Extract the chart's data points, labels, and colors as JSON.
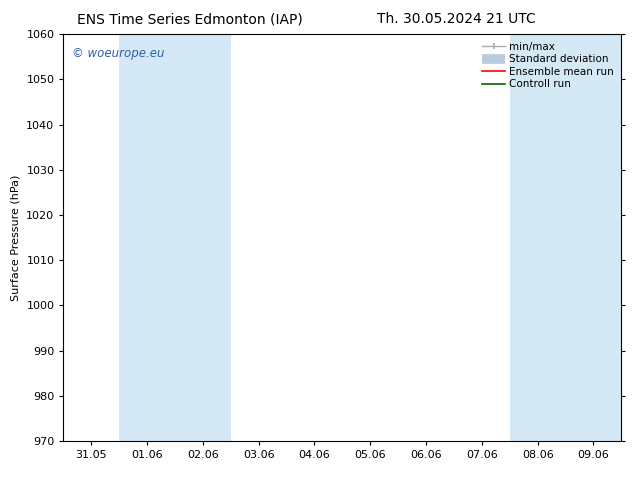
{
  "title_left": "ENS Time Series Edmonton (IAP)",
  "title_right": "Th. 30.05.2024 21 UTC",
  "ylabel": "Surface Pressure (hPa)",
  "ylim": [
    970,
    1060
  ],
  "yticks": [
    970,
    980,
    990,
    1000,
    1010,
    1020,
    1030,
    1040,
    1050,
    1060
  ],
  "xtick_labels": [
    "31.05",
    "01.06",
    "02.06",
    "03.06",
    "04.06",
    "05.06",
    "06.06",
    "07.06",
    "08.06",
    "09.06"
  ],
  "xtick_positions": [
    0,
    1,
    2,
    3,
    4,
    5,
    6,
    7,
    8,
    9
  ],
  "xlim": [
    -0.5,
    9.5
  ],
  "shaded_bands": [
    {
      "x_start": 0.5,
      "x_end": 1.5
    },
    {
      "x_start": 1.5,
      "x_end": 2.5
    },
    {
      "x_start": 7.5,
      "x_end": 8.5
    },
    {
      "x_start": 8.5,
      "x_end": 9.5
    }
  ],
  "band_color": "#d5e8f5",
  "background_color": "#ffffff",
  "watermark_text": "© woeurope.eu",
  "watermark_color": "#3060b0",
  "legend_minmax_color": "#aaaaaa",
  "legend_std_color": "#bbccdd",
  "legend_ens_color": "#ff0000",
  "legend_ctrl_color": "#006600",
  "title_fontsize": 10,
  "axis_label_fontsize": 8,
  "tick_fontsize": 8,
  "legend_fontsize": 7.5
}
